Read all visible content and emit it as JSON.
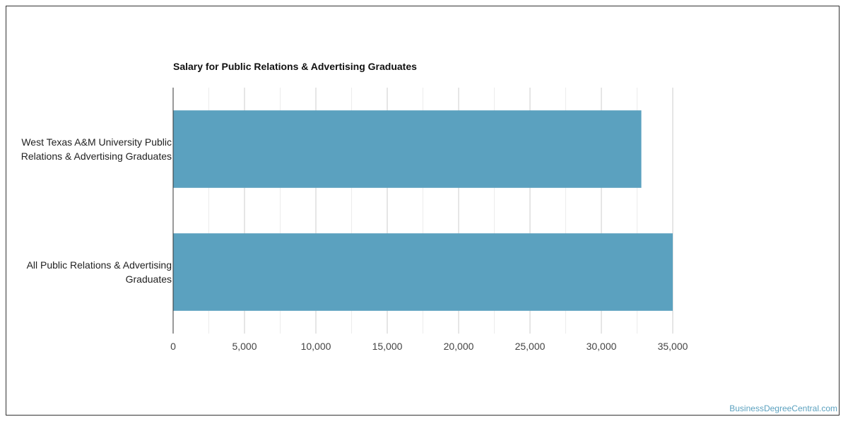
{
  "chart_data": {
    "type": "bar",
    "orientation": "horizontal",
    "title": "Salary for Public Relations & Advertising Graduates",
    "categories": [
      [
        "West Texas A&M University Public",
        "Relations & Advertising Graduates"
      ],
      [
        "All Public Relations & Advertising",
        "Graduates"
      ]
    ],
    "values": [
      32800,
      35000
    ],
    "xlim": [
      0,
      35000
    ],
    "xticks": [
      "0",
      "5,000",
      "10,000",
      "15,000",
      "20,000",
      "25,000",
      "30,000",
      "35,000"
    ],
    "xtick_values": [
      0,
      5000,
      10000,
      15000,
      20000,
      25000,
      30000,
      35000
    ],
    "grid": true,
    "bar_color": "#5ba1bf"
  },
  "watermark": "BusinessDegreeCentral.com"
}
